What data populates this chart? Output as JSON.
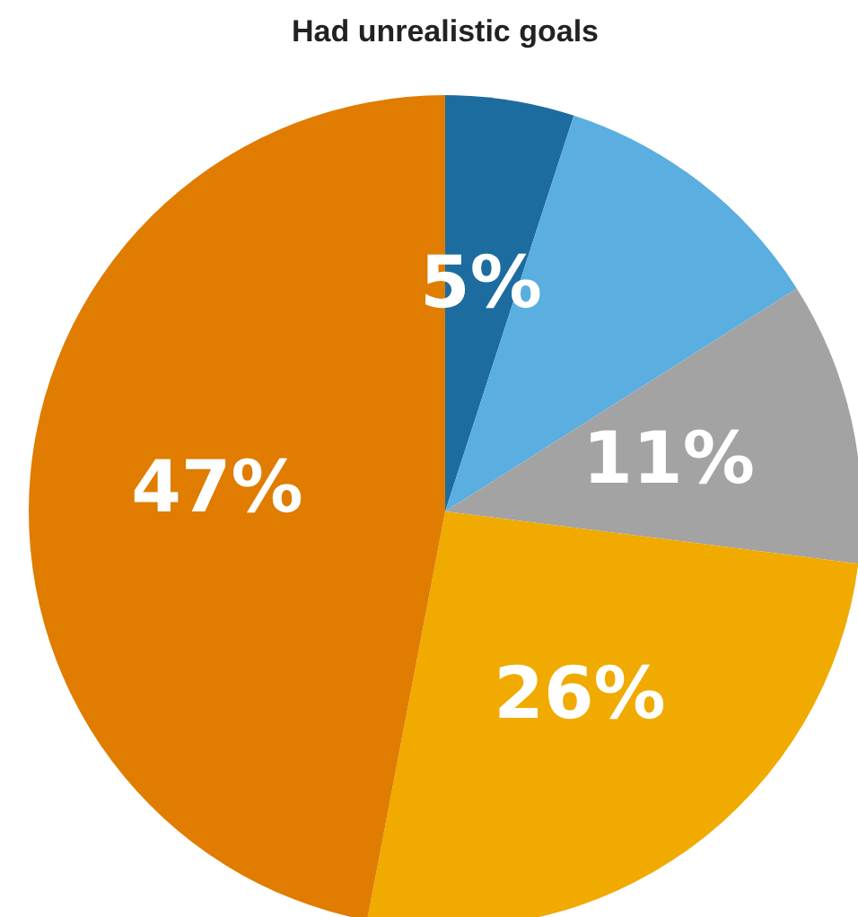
{
  "chart_data": {
    "type": "pie",
    "title": "Had unrealistic goals",
    "categories": [
      null,
      null,
      null,
      null,
      null
    ],
    "values": [
      5,
      11,
      11,
      26,
      47
    ],
    "colors": [
      "#1d6c9f",
      "#5aaee0",
      "#a3a3a3",
      "#f0aa00",
      "#e07c00"
    ],
    "value_labels": [
      "5%",
      null,
      "11%",
      "26%",
      "47%"
    ]
  }
}
